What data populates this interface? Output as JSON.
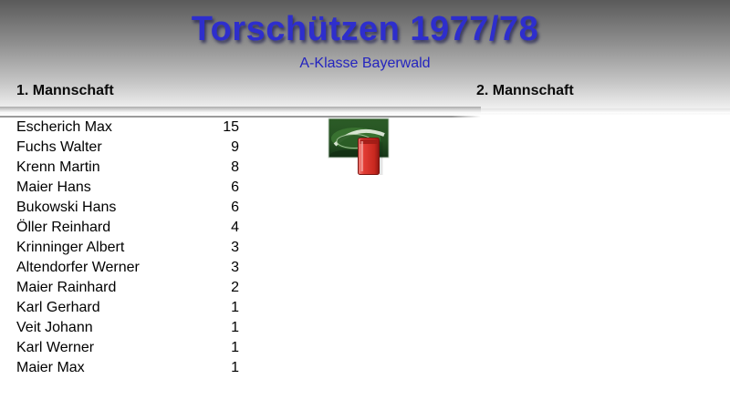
{
  "header": {
    "title": "Torschützen 1977/78",
    "subtitle": "A-Klasse Bayerwald"
  },
  "columns": {
    "left_header": "1. Mannschaft",
    "right_header": "2. Mannschaft"
  },
  "scorers": [
    {
      "name": "Escherich Max",
      "goals": "15"
    },
    {
      "name": "Fuchs Walter",
      "goals": "9"
    },
    {
      "name": "Krenn Martin",
      "goals": "8"
    },
    {
      "name": "Maier Hans",
      "goals": "6"
    },
    {
      "name": "Bukowski Hans",
      "goals": "6"
    },
    {
      "name": "Öller Reinhard",
      "goals": "4"
    },
    {
      "name": "Krinninger Albert",
      "goals": "3"
    },
    {
      "name": "Altendorfer Werner",
      "goals": "3"
    },
    {
      "name": "Maier Rainhard",
      "goals": "2"
    },
    {
      "name": "Karl Gerhard",
      "goals": "1"
    },
    {
      "name": "Veit Johann",
      "goals": "1"
    },
    {
      "name": "Karl Werner",
      "goals": "1"
    },
    {
      "name": "Maier Max",
      "goals": "1"
    }
  ],
  "logo": {
    "icon": "stadium-photo-with-red-card-icon"
  },
  "colors": {
    "title-blue": "#2e2ecd",
    "subtitle-blue": "#2424bf",
    "header-grad-top": "#5a5a5a",
    "divider-gray": "#9a9a9a",
    "card-red": "#d92f28",
    "stadium-green": "#255222"
  }
}
